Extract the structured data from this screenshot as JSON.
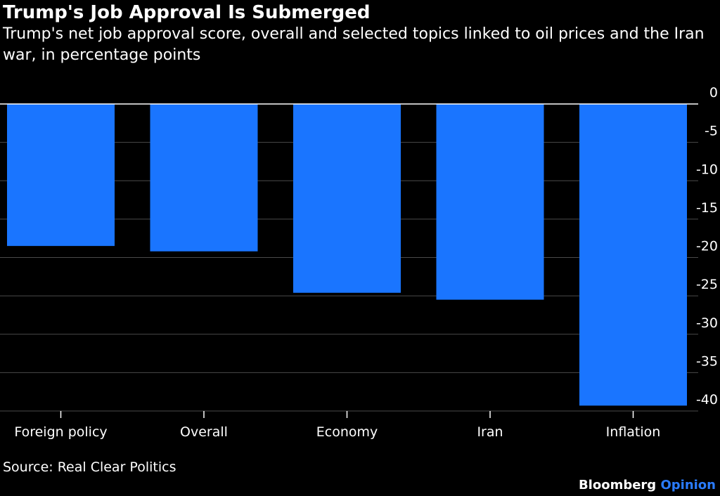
{
  "chart_data": {
    "type": "bar",
    "title": "Trump's Job Approval Is Submerged",
    "subtitle": "Trump's net job approval score, overall and selected topics linked to oil prices and the Iran war, in percentage points",
    "categories": [
      "Foreign policy",
      "Overall",
      "Economy",
      "Iran",
      "Inflation"
    ],
    "values": [
      -18.5,
      -19.2,
      -24.6,
      -25.5,
      -39.3
    ],
    "ylim": [
      -40,
      0
    ],
    "yticks": [
      0,
      -5,
      -10,
      -15,
      -20,
      -25,
      -30,
      -35,
      -40
    ],
    "ytick_labels": [
      "0",
      "-5",
      "-10",
      "-15",
      "-20",
      "-25",
      "-30",
      "-35",
      "-40"
    ],
    "y_axis_position": "right",
    "grid": true,
    "bar_color": "#1a75ff",
    "source": "Source: Real Clear Politics"
  },
  "brand": {
    "name": "Bloomberg",
    "accent": "Opinion",
    "accent_color": "#2a7cff"
  }
}
